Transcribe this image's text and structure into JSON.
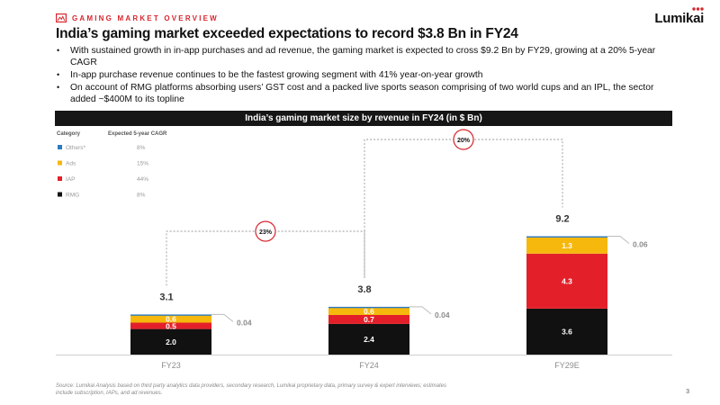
{
  "header": {
    "section_label": "GAMING MARKET OVERVIEW",
    "logo_text": "Lumikai"
  },
  "title": "India’s gaming market exceeded expectations to record $3.8 Bn in FY24",
  "bullets": [
    "With sustained growth in in-app purchases and ad revenue, the gaming market is expected to cross $9.2 Bn by FY29, growing at a 20% 5-year CAGR",
    "In-app purchase revenue continues to be the fastest growing segment with 41% year-on-year growth",
    "On account of RMG platforms absorbing users’ GST cost and a packed live sports season comprising of two world cups and an IPL, the sector added ~$400M to its topline"
  ],
  "chart_data": {
    "type": "bar",
    "stacked": true,
    "title": "India’s gaming market size by revenue in FY24 (in $ Bn)",
    "categories": [
      "FY23",
      "FY24",
      "FY29E"
    ],
    "series": [
      {
        "name": "RMG",
        "color": "#111111",
        "values": [
          2.0,
          2.4,
          3.6
        ],
        "labels": [
          "2.0",
          "2.4",
          "3.6"
        ]
      },
      {
        "name": "IAP",
        "color": "#e3202a",
        "values": [
          0.5,
          0.7,
          4.3
        ],
        "labels": [
          "0.5",
          "0.7",
          "4.3"
        ]
      },
      {
        "name": "Ads",
        "color": "#f6b80d",
        "values": [
          0.6,
          0.6,
          1.3
        ],
        "labels": [
          "0.6",
          "0.6",
          "1.3"
        ]
      },
      {
        "name": "Others*",
        "color": "#2a7bc4",
        "values": [
          0.04,
          0.04,
          0.06
        ],
        "labels": [
          "0.04",
          "0.04",
          "0.06"
        ]
      }
    ],
    "totals": [
      "3.1",
      "3.8",
      "9.2"
    ],
    "growth_annotations": [
      {
        "from": "FY23",
        "to": "FY24",
        "label": "23%"
      },
      {
        "from": "FY24",
        "to": "FY29E",
        "label": "20%"
      }
    ],
    "legend": {
      "header_category": "Category",
      "header_cagr": "Expected 5-year CAGR",
      "items": [
        {
          "name": "Others*",
          "cagr": "8%",
          "color": "#2a7bc4"
        },
        {
          "name": "Ads",
          "cagr": "15%",
          "color": "#f6b80d"
        },
        {
          "name": "IAP",
          "cagr": "44%",
          "color": "#e3202a"
        },
        {
          "name": "RMG",
          "cagr": "8%",
          "color": "#111111"
        }
      ]
    },
    "ylim": [
      0,
      9.8
    ]
  },
  "footnote": "Source: Lumikai Analysis based on third party analytics data providers, secondary research, Lumikai proprietary data, primary survey & expert interviews; estimates include subscription, IAPs, and ad revenues.",
  "page_number": "3"
}
